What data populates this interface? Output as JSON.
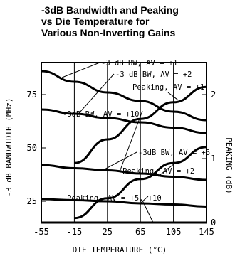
{
  "chart_data": {
    "type": "line",
    "title": [
      "-3dB Bandwidth and Peaking",
      "vs Die Temperature for",
      "Various Non-Inverting Gains"
    ],
    "xlabel": "DIE TEMPERATURE (°C)",
    "ylabel": "-3 dB BANDWIDTH (MHz)",
    "y2label": "PEAKING (dB)",
    "xlim": [
      -55,
      145
    ],
    "ylim": [
      15,
      90
    ],
    "y2lim": [
      0,
      2.5
    ],
    "xticks": [
      "-55",
      "-15",
      "25",
      "65",
      "105",
      "145"
    ],
    "yticks": [
      "25",
      "50",
      "75"
    ],
    "y2ticks": [
      "0",
      "1",
      "2"
    ],
    "grid": "vertical",
    "series": [
      {
        "name": "-3 dB BW, AV = +1",
        "axis": "left",
        "x": [
          -55,
          -15,
          25,
          65,
          105,
          145
        ],
        "y": [
          86,
          81,
          76,
          72,
          67,
          63
        ]
      },
      {
        "name": "-3 dB BW, AV = +2",
        "axis": "left",
        "x": [
          -55,
          -15,
          25,
          65,
          105,
          145
        ],
        "y": [
          68,
          66,
          64,
          62,
          59.5,
          57
        ]
      },
      {
        "name": "-3 dB BW, AV = +10",
        "axis": "left",
        "x": [
          -55,
          -15,
          25,
          65,
          105,
          145
        ],
        "y": [
          42,
          40.5,
          39.5,
          38,
          36.5,
          35
        ]
      },
      {
        "name": "-3 dB BW, AV = +5",
        "axis": "left",
        "x": [
          -55,
          -15,
          25,
          65,
          105,
          145
        ],
        "y": [
          26,
          25.5,
          25,
          24,
          23.5,
          22.5
        ]
      },
      {
        "name": "Peaking, AV = +1",
        "axis": "right",
        "x": [
          -15,
          25,
          65,
          105,
          145
        ],
        "y": [
          0.93,
          1.3,
          1.62,
          1.88,
          2.12
        ]
      },
      {
        "name": "Peaking, AV = +2",
        "axis": "right",
        "x": [
          -15,
          25,
          65,
          105,
          145
        ],
        "y": [
          0.07,
          0.38,
          0.68,
          0.93,
          1.18
        ]
      },
      {
        "name": "Peaking, AV = +5, +10",
        "axis": "right",
        "x": [
          -55,
          -15,
          25,
          65,
          105,
          145
        ],
        "y": [
          0,
          0,
          0,
          0,
          0,
          0
        ]
      }
    ],
    "annotations": [
      "-3 dB BW, AV = +1",
      "-3 dB BW, AV = +2",
      "Peaking, AV = +1",
      "-3dB BW, AV = +10",
      "-3dB BW, AV = +5",
      "Peaking, AV = +2",
      "Peaking, AV = +5, +10"
    ]
  }
}
